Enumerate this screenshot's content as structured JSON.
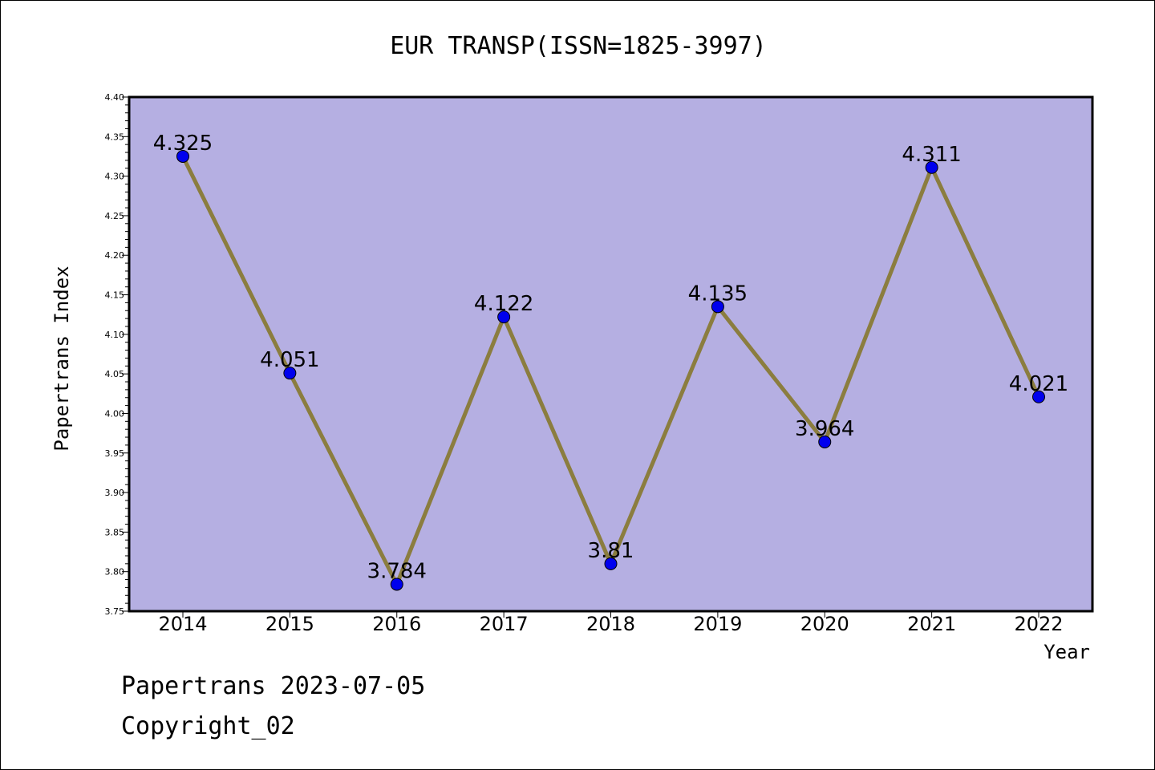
{
  "chart_data": {
    "type": "line",
    "title": "EUR TRANSP(ISSN=1825-3997)",
    "xlabel": "Year",
    "ylabel": "Papertrans Index",
    "categories": [
      "2014",
      "2015",
      "2016",
      "2017",
      "2018",
      "2019",
      "2020",
      "2021",
      "2022"
    ],
    "values": [
      4.325,
      4.051,
      3.784,
      4.122,
      3.81,
      4.135,
      3.964,
      4.311,
      4.021
    ],
    "data_labels": [
      "4.325",
      "4.051",
      "3.784",
      "4.122",
      "3.81",
      "4.135",
      "3.964",
      "4.311",
      "4.021"
    ],
    "ylim": [
      3.75,
      4.4
    ],
    "yticks": [
      "3.75",
      "3.80",
      "3.85",
      "3.90",
      "3.95",
      "4.00",
      "4.05",
      "4.10",
      "4.15",
      "4.20",
      "4.25",
      "4.30",
      "4.35",
      "4.40"
    ],
    "grid": false,
    "colors": {
      "plot_background": "#b5afe2",
      "line": "#8b7d3f",
      "marker": "#0000ee"
    }
  },
  "footer": {
    "line1": "Papertrans 2023-07-05",
    "line2": "Copyright_02"
  }
}
